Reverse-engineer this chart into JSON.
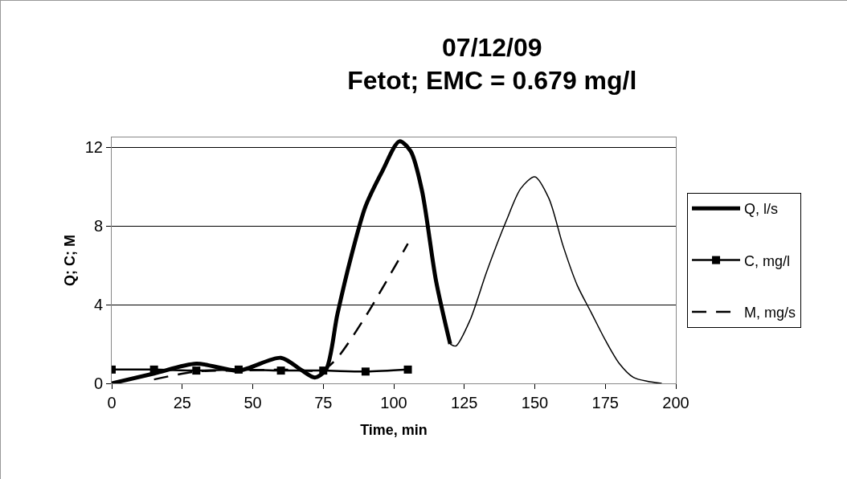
{
  "chart_data": {
    "type": "line",
    "title": "07/12/09\nFetot; EMC = 0.679 mg/l",
    "xlabel": "Time, min",
    "ylabel": "Q; C; M",
    "xlim": [
      0,
      200
    ],
    "xticks": [
      0,
      25,
      50,
      75,
      100,
      125,
      150,
      175,
      200
    ],
    "ylim": [
      0,
      12.5
    ],
    "yticks": [
      0,
      4,
      8,
      12
    ],
    "grid": "y",
    "legend": "right",
    "series": [
      {
        "name": "Q, l/s",
        "color": "#000000",
        "x": [
          0,
          15,
          30,
          45,
          60,
          67,
          72,
          76,
          80,
          85,
          90,
          96,
          102,
          106,
          110,
          115,
          120
        ],
        "values": [
          0,
          0.5,
          1.0,
          0.65,
          1.3,
          0.7,
          0.3,
          0.7,
          3.5,
          6.5,
          9,
          10.8,
          12.3,
          11.8,
          9.8,
          5.2,
          2.0
        ]
      },
      {
        "color": "#000000",
        "x": [
          120,
          122,
          127,
          133,
          140,
          145,
          150,
          155,
          160,
          165,
          170,
          175,
          180,
          185,
          190,
          195
        ],
        "values": [
          2.0,
          1.9,
          3.2,
          5.7,
          8.3,
          9.9,
          10.5,
          9.4,
          7.0,
          5.0,
          3.6,
          2.2,
          1.0,
          0.3,
          0.1,
          0
        ]
      },
      {
        "name": "C, mg/l",
        "color": "#000000",
        "marker": "square",
        "x": [
          0,
          15,
          30,
          45,
          60,
          75,
          90,
          105
        ],
        "values": [
          0.7,
          0.7,
          0.65,
          0.7,
          0.65,
          0.65,
          0.6,
          0.7
        ]
      },
      {
        "name": "M, mg/s",
        "color": "#000000",
        "line_style": "dashed",
        "x": [
          15,
          30,
          45,
          60,
          75,
          80,
          90,
          105
        ],
        "values": [
          0.2,
          0.6,
          0.65,
          0.7,
          0.7,
          1.3,
          3.4,
          7.1
        ]
      }
    ]
  }
}
